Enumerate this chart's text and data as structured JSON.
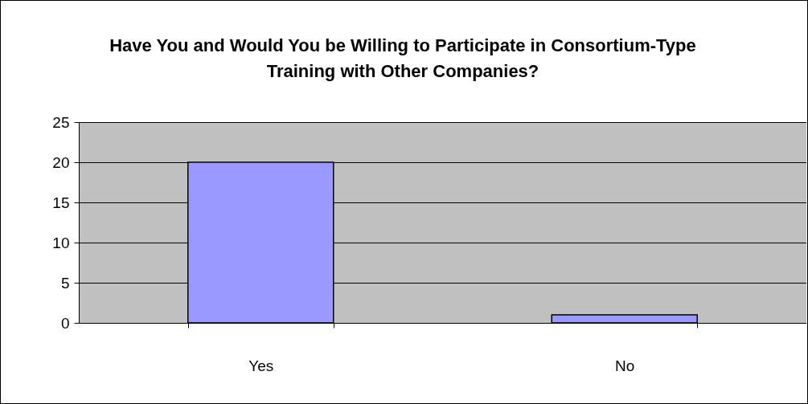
{
  "chart_data": {
    "type": "bar",
    "title": "Have You and Would You be Willing to Participate in Consortium-Type Training with Other Companies?",
    "categories": [
      "Yes",
      "No"
    ],
    "values": [
      20,
      1
    ],
    "color": "#9999ff",
    "ylim": [
      0,
      25
    ],
    "yticks": [
      0,
      5,
      10,
      15,
      20,
      25
    ],
    "grid": "y"
  }
}
